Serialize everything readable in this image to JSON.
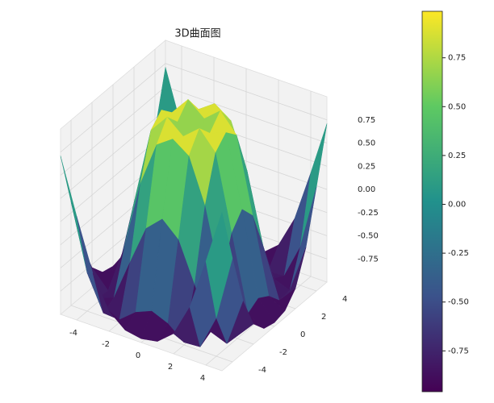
{
  "chart_data": {
    "type": "surface3d",
    "title": "3D曲面图",
    "x": [
      -5,
      -4,
      -3,
      -2,
      -1,
      0,
      1,
      2,
      3,
      4,
      5
    ],
    "y": [
      -5,
      -4,
      -3,
      -2,
      -1,
      0,
      1,
      2,
      3,
      4,
      5
    ],
    "z": [
      [
        0.709,
        0.119,
        -0.436,
        -0.782,
        -0.927,
        -0.959,
        -0.927,
        -0.782,
        -0.436,
        0.119,
        0.709
      ],
      [
        0.119,
        -0.586,
        -0.959,
        -0.971,
        -0.83,
        -0.757,
        -0.83,
        -0.971,
        -0.959,
        -0.586,
        0.119
      ],
      [
        -0.436,
        -0.959,
        -0.892,
        -0.448,
        -0.021,
        0.141,
        -0.021,
        -0.448,
        -0.892,
        -0.959,
        -0.436
      ],
      [
        -0.782,
        -0.971,
        -0.448,
        0.308,
        0.786,
        0.909,
        0.786,
        0.308,
        -0.448,
        -0.971,
        -0.782
      ],
      [
        -0.927,
        -0.83,
        -0.021,
        0.786,
        0.988,
        0.841,
        0.988,
        0.786,
        -0.021,
        -0.83,
        -0.927
      ],
      [
        -0.959,
        -0.757,
        0.141,
        0.909,
        0.841,
        0,
        0.841,
        0.909,
        0.141,
        -0.757,
        -0.959
      ],
      [
        -0.927,
        -0.83,
        -0.021,
        0.786,
        0.988,
        0.841,
        0.988,
        0.786,
        -0.021,
        -0.83,
        -0.927
      ],
      [
        -0.782,
        -0.971,
        -0.448,
        0.308,
        0.786,
        0.909,
        0.786,
        0.308,
        -0.448,
        -0.971,
        -0.782
      ],
      [
        -0.436,
        -0.959,
        -0.892,
        -0.448,
        -0.021,
        0.141,
        -0.021,
        -0.448,
        -0.892,
        -0.959,
        -0.436
      ],
      [
        0.119,
        -0.586,
        -0.959,
        -0.971,
        -0.83,
        -0.757,
        -0.83,
        -0.971,
        -0.959,
        -0.586,
        0.119
      ],
      [
        0.709,
        0.119,
        -0.436,
        -0.782,
        -0.927,
        -0.959,
        -0.927,
        -0.782,
        -0.436,
        0.119,
        0.709
      ]
    ],
    "xlim": [
      -5,
      5
    ],
    "ylim": [
      -5,
      5
    ],
    "zlim": [
      -1,
      1
    ],
    "xticks": [
      -4,
      -2,
      0,
      2,
      4
    ],
    "yticks": [
      -4,
      -2,
      0,
      2,
      4
    ],
    "zticks": [
      -0.75,
      {
        "value": -0.5,
        "label": "-0.50"
      },
      -0.25,
      {
        "value": 0,
        "label": "0.00"
      },
      0.25,
      {
        "value": 0.5,
        "label": "0.50"
      },
      0.75
    ],
    "clim": [
      -0.959,
      0.988
    ],
    "cticks": [
      -0.75,
      {
        "value": -0.5,
        "label": "-0.50"
      },
      -0.25,
      {
        "value": 0,
        "label": "0.00"
      },
      0.25,
      {
        "value": 0.5,
        "label": "0.50"
      },
      0.75
    ],
    "colormap": [
      "#440154",
      "#3b528b",
      "#21918c",
      "#5ec962",
      "#fde725"
    ],
    "grid": true
  }
}
